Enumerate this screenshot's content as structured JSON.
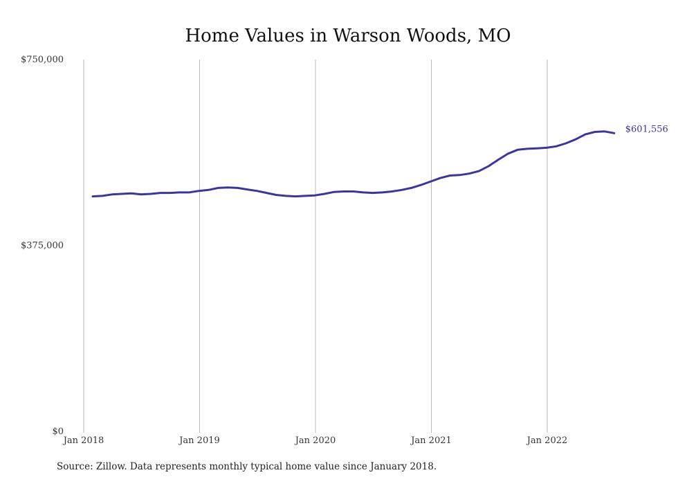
{
  "chart_data": {
    "type": "line",
    "title": "Home Values in Warson Woods, MO",
    "xlabel": "",
    "ylabel": "",
    "x_ticks": [
      "Jan 2018",
      "Jan 2019",
      "Jan 2020",
      "Jan 2021",
      "Jan 2022"
    ],
    "y_ticks": [
      "$0",
      "$375,000",
      "$750,000"
    ],
    "ylim": [
      0,
      750000
    ],
    "grid": "vertical",
    "line_color": "#3b35a0",
    "end_label": "$601,556",
    "series": [
      {
        "x": [
          "2018-01",
          "2018-02",
          "2018-03",
          "2018-04",
          "2018-05",
          "2018-06",
          "2018-07",
          "2018-08",
          "2018-09",
          "2018-10",
          "2018-11",
          "2018-12",
          "2019-01",
          "2019-02",
          "2019-03",
          "2019-04",
          "2019-05",
          "2019-06",
          "2019-07",
          "2019-08",
          "2019-09",
          "2019-10",
          "2019-11",
          "2019-12",
          "2020-01",
          "2020-02",
          "2020-03",
          "2020-04",
          "2020-05",
          "2020-06",
          "2020-07",
          "2020-08",
          "2020-09",
          "2020-10",
          "2020-11",
          "2020-12",
          "2021-01",
          "2021-02",
          "2021-03",
          "2021-04",
          "2021-05",
          "2021-06",
          "2021-07",
          "2021-08",
          "2021-09",
          "2021-10",
          "2021-11",
          "2021-12",
          "2022-01",
          "2022-02",
          "2022-03",
          "2022-04",
          "2022-05",
          "2022-06",
          "2022-07"
        ],
        "values": [
          474000,
          475000,
          478000,
          479000,
          480000,
          478000,
          479000,
          481000,
          481000,
          482000,
          482000,
          485000,
          487000,
          491000,
          492000,
          491000,
          488000,
          485000,
          481000,
          477000,
          475000,
          474000,
          475000,
          476000,
          479000,
          483000,
          484000,
          484000,
          482000,
          481000,
          482000,
          484000,
          487000,
          491000,
          497000,
          504000,
          511000,
          516000,
          517000,
          520000,
          525000,
          535000,
          548000,
          560000,
          568000,
          570000,
          571000,
          572000,
          575000,
          581000,
          589000,
          599000,
          604000,
          605000,
          601556
        ]
      }
    ]
  },
  "source_text": "Source: Zillow. Data represents monthly typical home value since January 2018."
}
